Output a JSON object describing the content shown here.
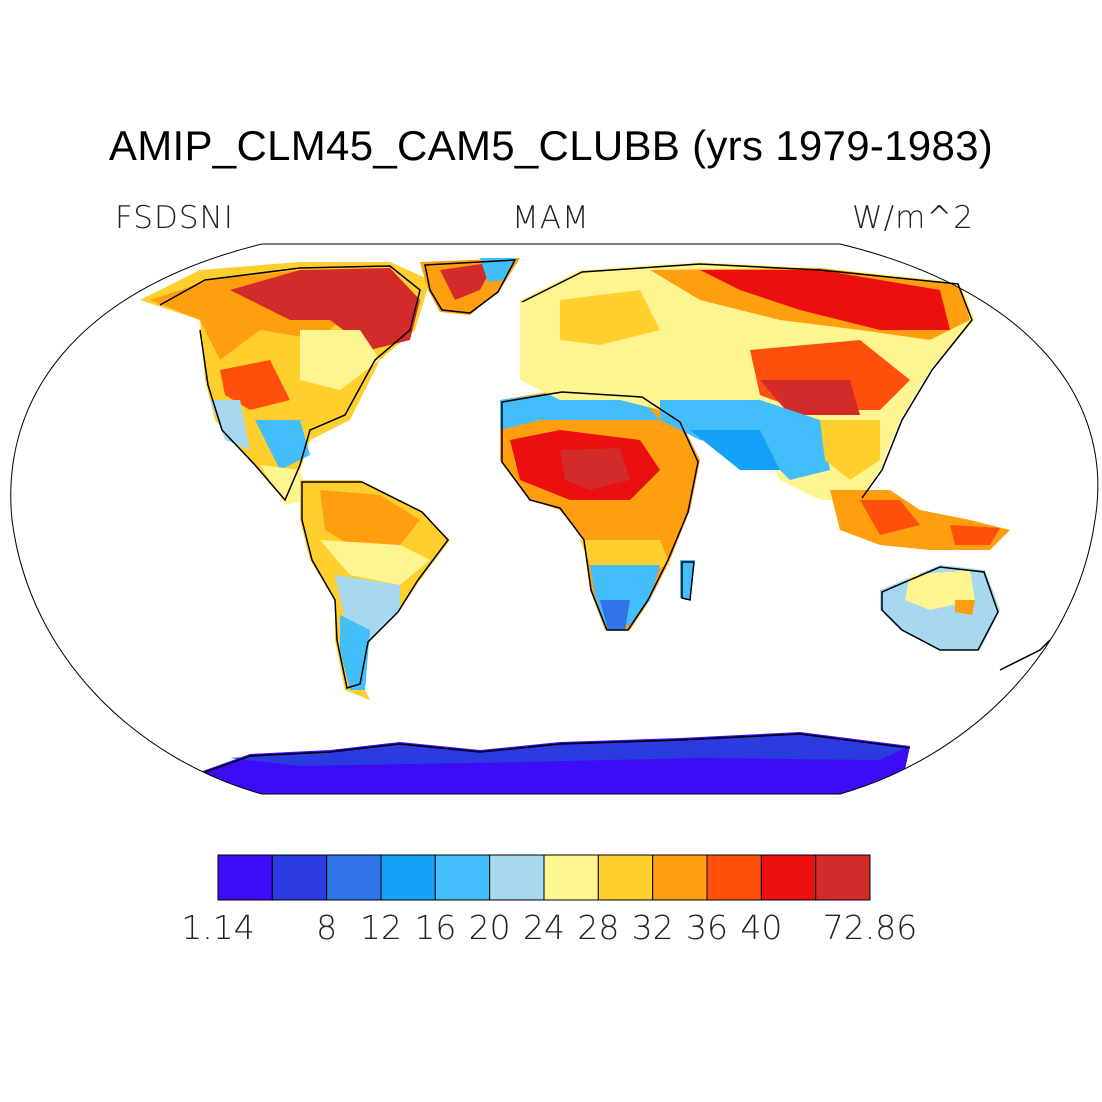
{
  "title": "AMIP_CLM45_CAM5_CLUBB (yrs 1979-1983)",
  "left_label": "FSDSNI",
  "center_label": "MAM",
  "right_label": "W/m^2",
  "colorbar": {
    "colors": [
      "#3d0cf6",
      "#2a3be0",
      "#3173e8",
      "#13a2f7",
      "#44befa",
      "#a8d8f0",
      "#fff590",
      "#ffcf2e",
      "#ff9f10",
      "#ff4f0c",
      "#eb0f0f",
      "#d32a2a"
    ],
    "labels": [
      "1.14",
      "8",
      "12",
      "16",
      "20",
      "24",
      "28",
      "32",
      "36",
      "40",
      "72.86"
    ]
  },
  "map": {
    "projection": "Robinson",
    "ocean_color": "#ffffff",
    "coastline_color": "#000000"
  }
}
